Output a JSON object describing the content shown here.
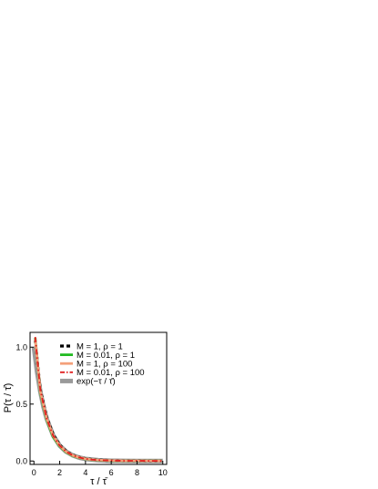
{
  "chart_data": {
    "type": "line",
    "xlabel": "τ / τ̄",
    "ylabel": "P(τ / τ̄)",
    "xlim": [
      -0.3,
      10.3
    ],
    "ylim": [
      -0.03,
      1.13
    ],
    "x_ticks": [
      0,
      2,
      4,
      6,
      8,
      10
    ],
    "x_tick_labels": [
      "0",
      "2",
      "4",
      "6",
      "8",
      "10"
    ],
    "y_ticks": [
      0.0,
      0.5,
      1.0
    ],
    "y_tick_labels": [
      "0.0",
      "0.5",
      "1.0"
    ],
    "grid": false,
    "legend_position": "top-right",
    "series": [
      {
        "name": "M = 1, ρ = 1",
        "color": "#000000",
        "style": "dotted",
        "x": [
          0.1,
          0.5,
          1,
          1.5,
          2,
          2.5,
          3,
          3.5,
          4,
          4.5,
          5,
          6,
          7,
          8,
          9,
          9.9
        ],
        "y": [
          1.06,
          0.62,
          0.38,
          0.23,
          0.14,
          0.085,
          0.052,
          0.032,
          0.02,
          0.013,
          0.008,
          0.004,
          0.002,
          0.002,
          0.001,
          0.001
        ]
      },
      {
        "name": "M = 0.01, ρ = 1",
        "color": "#22bb22",
        "style": "solid",
        "x": [
          0.1,
          0.5,
          1,
          1.5,
          2,
          2.5,
          3,
          3.5,
          4,
          4.5,
          5,
          6,
          7,
          8,
          9,
          9.9
        ],
        "y": [
          1.08,
          0.6,
          0.36,
          0.21,
          0.13,
          0.078,
          0.047,
          0.029,
          0.018,
          0.011,
          0.007,
          0.003,
          0.002,
          0.001,
          0.001,
          0.001
        ]
      },
      {
        "name": "M = 1, ρ = 100",
        "color": "#f4a07a",
        "style": "solid",
        "x": [
          0.1,
          0.5,
          1,
          1.5,
          2,
          2.5,
          3,
          3.5,
          4,
          4.5,
          5,
          6,
          7,
          8,
          9,
          9.9
        ],
        "y": [
          1.07,
          0.61,
          0.37,
          0.22,
          0.135,
          0.082,
          0.05,
          0.031,
          0.019,
          0.012,
          0.008,
          0.004,
          0.002,
          0.002,
          0.001,
          0.001
        ]
      },
      {
        "name": "M = 0.01, ρ = 100",
        "color": "#e02020",
        "style": "dashdot",
        "x": [
          0.1,
          0.5,
          1,
          1.5,
          2,
          2.5,
          3,
          3.5,
          4,
          4.5,
          5,
          6,
          7,
          8,
          9,
          9.9
        ],
        "y": [
          1.09,
          0.62,
          0.37,
          0.22,
          0.135,
          0.082,
          0.05,
          0.031,
          0.019,
          0.012,
          0.008,
          0.004,
          0.002,
          0.002,
          0.001,
          0.001
        ]
      },
      {
        "name": "exp(−τ / τ̄)",
        "color": "#9a9a9a",
        "style": "thick",
        "x": [
          0,
          0.25,
          0.5,
          0.75,
          1,
          1.5,
          2,
          2.5,
          3,
          3.5,
          4,
          5,
          6,
          7,
          8,
          9,
          10
        ],
        "y": [
          1.0,
          0.779,
          0.607,
          0.472,
          0.368,
          0.223,
          0.135,
          0.082,
          0.05,
          0.03,
          0.018,
          0.007,
          0.002,
          0.001,
          0.0,
          0.0,
          0.0
        ]
      }
    ]
  }
}
